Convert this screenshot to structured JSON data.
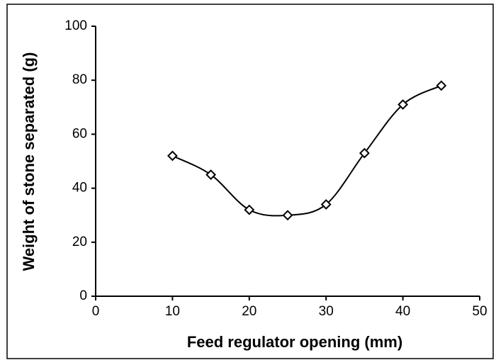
{
  "chart_data": {
    "type": "line",
    "x": [
      10,
      15,
      20,
      25,
      30,
      35,
      40,
      45
    ],
    "series": [
      {
        "color": "#000000",
        "values": [
          52,
          45,
          32,
          30,
          34,
          53,
          71,
          78
        ]
      }
    ],
    "x_label": "Feed regulator opening (mm)",
    "y_label": "Weight of stone separated (g)",
    "xlim": [
      0,
      50
    ],
    "xticks": [
      0,
      10,
      20,
      30,
      40,
      50
    ],
    "ylim": [
      0,
      100
    ],
    "yticks": [
      0,
      20,
      40,
      60,
      80,
      100
    ],
    "smooth": true,
    "marker": "diamond"
  }
}
